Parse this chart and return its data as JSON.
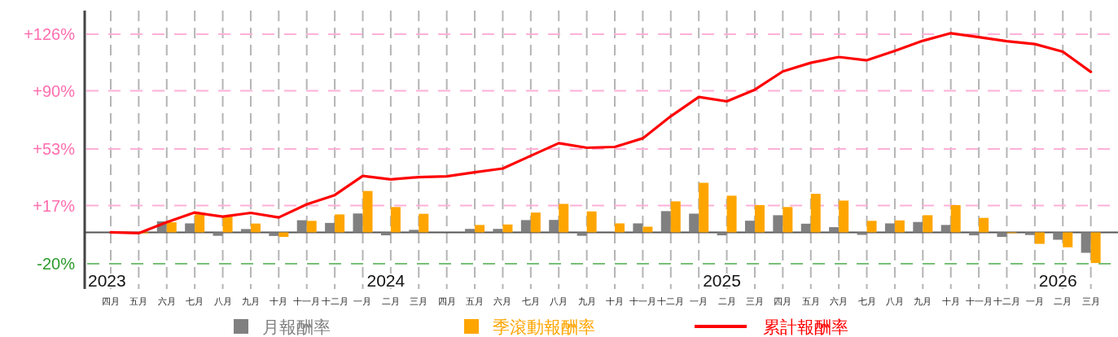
{
  "chart_data": {
    "type": "bar",
    "categories": [
      "四月",
      "五月",
      "六月",
      "七月",
      "八月",
      "九月",
      "十月",
      "十一月",
      "十二月",
      "一月",
      "二月",
      "三月",
      "四月",
      "五月",
      "六月",
      "七月",
      "八月",
      "九月",
      "十月",
      "十一月",
      "十二月",
      "一月",
      "二月",
      "三月",
      "四月",
      "五月",
      "六月",
      "七月",
      "八月",
      "九月",
      "十月",
      "十一月",
      "十二月",
      "一月",
      "二月",
      "三月"
    ],
    "annotations": [
      "2023",
      "2024",
      "2025",
      "2026"
    ],
    "ylim": [
      -36,
      141
    ],
    "yticks": [
      {
        "value": 126,
        "label": "+126%"
      },
      {
        "value": 90,
        "label": "+90%"
      },
      {
        "value": 53,
        "label": "+53%"
      },
      {
        "value": 17,
        "label": "+17%"
      },
      {
        "value": -20,
        "label": "-20%"
      }
    ],
    "grid": true,
    "legend": "bottom",
    "ref_lines": [
      {
        "axis": "y",
        "value": -20,
        "color": "#78c078",
        "line_style": "dashed"
      }
    ],
    "series": [
      {
        "name": "月報酬率",
        "type": "bar",
        "color": "#808080",
        "values": [
          null,
          null,
          7.0,
          5.7,
          -2.2,
          2.1,
          -2.3,
          7.7,
          6.0,
          12.0,
          -1.9,
          1.6,
          null,
          2.2,
          2.2,
          7.8,
          7.9,
          -2.2,
          null,
          5.7,
          13.5,
          11.9,
          -1.9,
          7.4,
          10.9,
          5.5,
          3.3,
          -1.6,
          5.7,
          6.6,
          4.7,
          -1.9,
          -2.9,
          -1.7,
          -4.7,
          -13.0
        ]
      },
      {
        "name": "季滾動報酬率",
        "type": "bar",
        "color": "#ffa500",
        "values": [
          null,
          -0.6,
          6.4,
          11.5,
          10.0,
          5.6,
          -2.9,
          7.3,
          11.4,
          26.3,
          16.1,
          11.8,
          null,
          4.7,
          5.0,
          12.6,
          18.1,
          13.3,
          5.7,
          3.6,
          19.7,
          31.5,
          23.3,
          17.3,
          16.1,
          24.5,
          20.2,
          7.3,
          7.6,
          10.9,
          17.3,
          9.2,
          -0.5,
          -7.3,
          -9.5,
          -19.5
        ]
      },
      {
        "name": "累計報酬率",
        "type": "line",
        "color": "#ff0000",
        "values": [
          0,
          -0.5,
          6.4,
          12.6,
          10.0,
          12.4,
          9.5,
          17.8,
          23.7,
          35.9,
          33.7,
          35.1,
          35.6,
          38.2,
          40.6,
          48.7,
          56.7,
          53.8,
          54.3,
          59.8,
          73.8,
          86.1,
          83.3,
          90.7,
          102.3,
          107.8,
          111.5,
          109.4,
          115.4,
          121.8,
          126.6,
          124.1,
          121.5,
          119.7,
          114.9,
          102.0
        ]
      }
    ]
  }
}
